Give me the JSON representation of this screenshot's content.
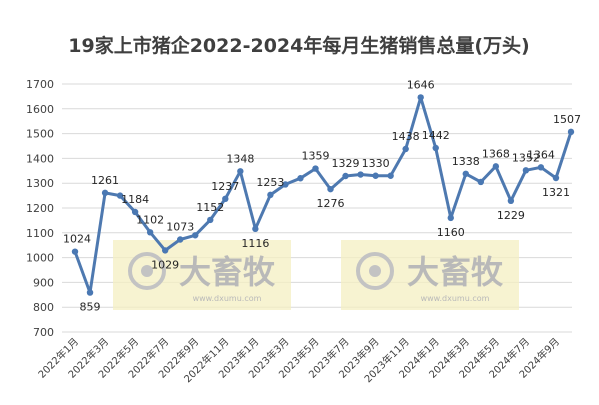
{
  "chart_data": {
    "type": "line",
    "title": "19家上市猪企2022-2024年每月生猪销售总量(万头)",
    "xlabel": "",
    "ylabel": "",
    "ylim": [
      700,
      1700
    ],
    "yticks": [
      700,
      800,
      900,
      1000,
      1100,
      1200,
      1300,
      1400,
      1500,
      1600,
      1700
    ],
    "grid": true,
    "legend": "none",
    "categories": [
      "2022年1月",
      "2022年2月",
      "2022年3月",
      "2022年4月",
      "2022年5月",
      "2022年6月",
      "2022年7月",
      "2022年8月",
      "2022年9月",
      "2022年10月",
      "2022年11月",
      "2022年12月",
      "2023年1月",
      "2023年2月",
      "2023年3月",
      "2023年4月",
      "2023年5月",
      "2023年6月",
      "2023年7月",
      "2023年8月",
      "2023年9月",
      "2023年10月",
      "2023年11月",
      "2023年12月",
      "2024年1月",
      "2024年2月",
      "2024年3月",
      "2024年4月",
      "2024年5月",
      "2024年6月",
      "2024年7月",
      "2024年8月",
      "2024年9月",
      "2024年10月"
    ],
    "xtick_labels": [
      "2022年1月",
      "2022年3月",
      "2022年5月",
      "2022年7月",
      "2022年9月",
      "2022年11月",
      "2023年1月",
      "2023年3月",
      "2023年5月",
      "2023年7月",
      "2023年9月",
      "2023年11月",
      "2024年1月",
      "2024年3月",
      "2024年5月",
      "2024年7月",
      "2024年9月"
    ],
    "series": [
      {
        "color": "#4e79b0",
        "values": [
          1024,
          859,
          1261,
          1250,
          1184,
          1102,
          1029,
          1073,
          1090,
          1152,
          1237,
          1348,
          1116,
          1253,
          1295,
          1320,
          1359,
          1276,
          1329,
          1335,
          1330,
          1330,
          1438,
          1646,
          1442,
          1160,
          1338,
          1305,
          1368,
          1229,
          1352,
          1364,
          1321,
          1507
        ],
        "labels": [
          "1024",
          "859",
          "1261",
          null,
          "1184",
          "1102",
          "1029",
          "1073",
          null,
          "1152",
          "1237",
          "1348",
          "1116",
          "1253",
          null,
          null,
          "1359",
          "1276",
          "1329",
          null,
          "1330",
          null,
          "1438",
          "1646",
          "1442",
          "1160",
          "1338",
          null,
          "1368",
          "1229",
          "1352",
          "1364",
          "1321",
          "1507"
        ]
      }
    ],
    "watermark": {
      "name": "大畜牧",
      "url": "www.dxumu.com"
    }
  }
}
